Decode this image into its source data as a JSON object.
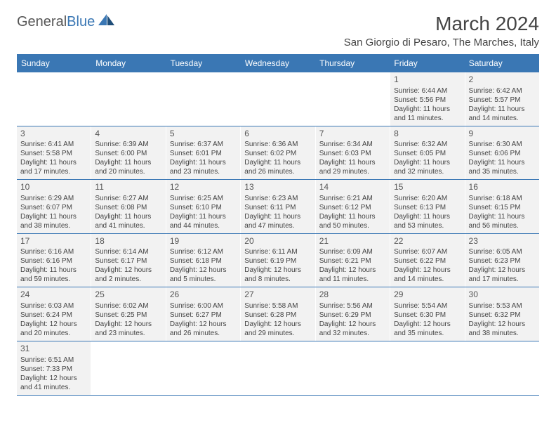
{
  "logo": {
    "text1": "General",
    "text2": "Blue"
  },
  "title": "March 2024",
  "location": "San Giorgio di Pesaro, The Marches, Italy",
  "colors": {
    "header_bg": "#3a77b4",
    "cell_bg": "#f2f2f2",
    "border": "#3a77b4"
  },
  "day_labels": [
    "Sunday",
    "Monday",
    "Tuesday",
    "Wednesday",
    "Thursday",
    "Friday",
    "Saturday"
  ],
  "weeks": [
    [
      null,
      null,
      null,
      null,
      null,
      {
        "n": "1",
        "sr": "Sunrise: 6:44 AM",
        "ss": "Sunset: 5:56 PM",
        "dl1": "Daylight: 11 hours",
        "dl2": "and 11 minutes."
      },
      {
        "n": "2",
        "sr": "Sunrise: 6:42 AM",
        "ss": "Sunset: 5:57 PM",
        "dl1": "Daylight: 11 hours",
        "dl2": "and 14 minutes."
      }
    ],
    [
      {
        "n": "3",
        "sr": "Sunrise: 6:41 AM",
        "ss": "Sunset: 5:58 PM",
        "dl1": "Daylight: 11 hours",
        "dl2": "and 17 minutes."
      },
      {
        "n": "4",
        "sr": "Sunrise: 6:39 AM",
        "ss": "Sunset: 6:00 PM",
        "dl1": "Daylight: 11 hours",
        "dl2": "and 20 minutes."
      },
      {
        "n": "5",
        "sr": "Sunrise: 6:37 AM",
        "ss": "Sunset: 6:01 PM",
        "dl1": "Daylight: 11 hours",
        "dl2": "and 23 minutes."
      },
      {
        "n": "6",
        "sr": "Sunrise: 6:36 AM",
        "ss": "Sunset: 6:02 PM",
        "dl1": "Daylight: 11 hours",
        "dl2": "and 26 minutes."
      },
      {
        "n": "7",
        "sr": "Sunrise: 6:34 AM",
        "ss": "Sunset: 6:03 PM",
        "dl1": "Daylight: 11 hours",
        "dl2": "and 29 minutes."
      },
      {
        "n": "8",
        "sr": "Sunrise: 6:32 AM",
        "ss": "Sunset: 6:05 PM",
        "dl1": "Daylight: 11 hours",
        "dl2": "and 32 minutes."
      },
      {
        "n": "9",
        "sr": "Sunrise: 6:30 AM",
        "ss": "Sunset: 6:06 PM",
        "dl1": "Daylight: 11 hours",
        "dl2": "and 35 minutes."
      }
    ],
    [
      {
        "n": "10",
        "sr": "Sunrise: 6:29 AM",
        "ss": "Sunset: 6:07 PM",
        "dl1": "Daylight: 11 hours",
        "dl2": "and 38 minutes."
      },
      {
        "n": "11",
        "sr": "Sunrise: 6:27 AM",
        "ss": "Sunset: 6:08 PM",
        "dl1": "Daylight: 11 hours",
        "dl2": "and 41 minutes."
      },
      {
        "n": "12",
        "sr": "Sunrise: 6:25 AM",
        "ss": "Sunset: 6:10 PM",
        "dl1": "Daylight: 11 hours",
        "dl2": "and 44 minutes."
      },
      {
        "n": "13",
        "sr": "Sunrise: 6:23 AM",
        "ss": "Sunset: 6:11 PM",
        "dl1": "Daylight: 11 hours",
        "dl2": "and 47 minutes."
      },
      {
        "n": "14",
        "sr": "Sunrise: 6:21 AM",
        "ss": "Sunset: 6:12 PM",
        "dl1": "Daylight: 11 hours",
        "dl2": "and 50 minutes."
      },
      {
        "n": "15",
        "sr": "Sunrise: 6:20 AM",
        "ss": "Sunset: 6:13 PM",
        "dl1": "Daylight: 11 hours",
        "dl2": "and 53 minutes."
      },
      {
        "n": "16",
        "sr": "Sunrise: 6:18 AM",
        "ss": "Sunset: 6:15 PM",
        "dl1": "Daylight: 11 hours",
        "dl2": "and 56 minutes."
      }
    ],
    [
      {
        "n": "17",
        "sr": "Sunrise: 6:16 AM",
        "ss": "Sunset: 6:16 PM",
        "dl1": "Daylight: 11 hours",
        "dl2": "and 59 minutes."
      },
      {
        "n": "18",
        "sr": "Sunrise: 6:14 AM",
        "ss": "Sunset: 6:17 PM",
        "dl1": "Daylight: 12 hours",
        "dl2": "and 2 minutes."
      },
      {
        "n": "19",
        "sr": "Sunrise: 6:12 AM",
        "ss": "Sunset: 6:18 PM",
        "dl1": "Daylight: 12 hours",
        "dl2": "and 5 minutes."
      },
      {
        "n": "20",
        "sr": "Sunrise: 6:11 AM",
        "ss": "Sunset: 6:19 PM",
        "dl1": "Daylight: 12 hours",
        "dl2": "and 8 minutes."
      },
      {
        "n": "21",
        "sr": "Sunrise: 6:09 AM",
        "ss": "Sunset: 6:21 PM",
        "dl1": "Daylight: 12 hours",
        "dl2": "and 11 minutes."
      },
      {
        "n": "22",
        "sr": "Sunrise: 6:07 AM",
        "ss": "Sunset: 6:22 PM",
        "dl1": "Daylight: 12 hours",
        "dl2": "and 14 minutes."
      },
      {
        "n": "23",
        "sr": "Sunrise: 6:05 AM",
        "ss": "Sunset: 6:23 PM",
        "dl1": "Daylight: 12 hours",
        "dl2": "and 17 minutes."
      }
    ],
    [
      {
        "n": "24",
        "sr": "Sunrise: 6:03 AM",
        "ss": "Sunset: 6:24 PM",
        "dl1": "Daylight: 12 hours",
        "dl2": "and 20 minutes."
      },
      {
        "n": "25",
        "sr": "Sunrise: 6:02 AM",
        "ss": "Sunset: 6:25 PM",
        "dl1": "Daylight: 12 hours",
        "dl2": "and 23 minutes."
      },
      {
        "n": "26",
        "sr": "Sunrise: 6:00 AM",
        "ss": "Sunset: 6:27 PM",
        "dl1": "Daylight: 12 hours",
        "dl2": "and 26 minutes."
      },
      {
        "n": "27",
        "sr": "Sunrise: 5:58 AM",
        "ss": "Sunset: 6:28 PM",
        "dl1": "Daylight: 12 hours",
        "dl2": "and 29 minutes."
      },
      {
        "n": "28",
        "sr": "Sunrise: 5:56 AM",
        "ss": "Sunset: 6:29 PM",
        "dl1": "Daylight: 12 hours",
        "dl2": "and 32 minutes."
      },
      {
        "n": "29",
        "sr": "Sunrise: 5:54 AM",
        "ss": "Sunset: 6:30 PM",
        "dl1": "Daylight: 12 hours",
        "dl2": "and 35 minutes."
      },
      {
        "n": "30",
        "sr": "Sunrise: 5:53 AM",
        "ss": "Sunset: 6:32 PM",
        "dl1": "Daylight: 12 hours",
        "dl2": "and 38 minutes."
      }
    ],
    [
      {
        "n": "31",
        "sr": "Sunrise: 6:51 AM",
        "ss": "Sunset: 7:33 PM",
        "dl1": "Daylight: 12 hours",
        "dl2": "and 41 minutes."
      },
      null,
      null,
      null,
      null,
      null,
      null
    ]
  ]
}
